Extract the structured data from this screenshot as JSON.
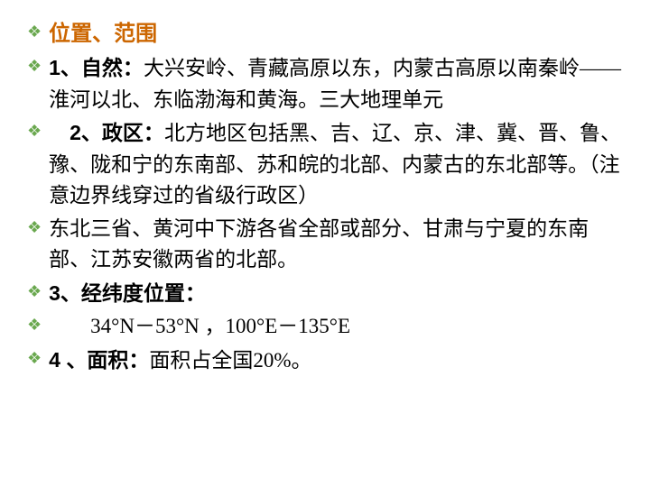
{
  "items": [
    {
      "title": "位置、范围",
      "isTitle": true
    },
    {
      "label": "1、自然：",
      "text": "大兴安岭、青藏高原以东，内蒙古高原以南秦岭——淮河以北、东临渤海和黄海。三大地理单元"
    },
    {
      "label": "　2、政区：",
      "text": "北方地区包括黑、吉、辽、京、津、冀、晋、鲁、豫、陇和宁的东南部、苏和皖的北部、内蒙古的东北部等。（注意边界线穿过的省级行政区）"
    },
    {
      "text": "东北三省、黄河中下游各省全部或部分、甘肃与宁夏的东南部、江苏安徽两省的北部。"
    },
    {
      "label": " 3、经纬度位置："
    },
    {
      "text": "　　34°N－53°N ，100°E－135°E"
    },
    {
      "label": " 4 、面积：",
      "text": "面积占全国20%。"
    }
  ],
  "colors": {
    "diamond": "#6aa84f",
    "title": "#cc6600",
    "text": "#000000",
    "background": "#ffffff"
  }
}
